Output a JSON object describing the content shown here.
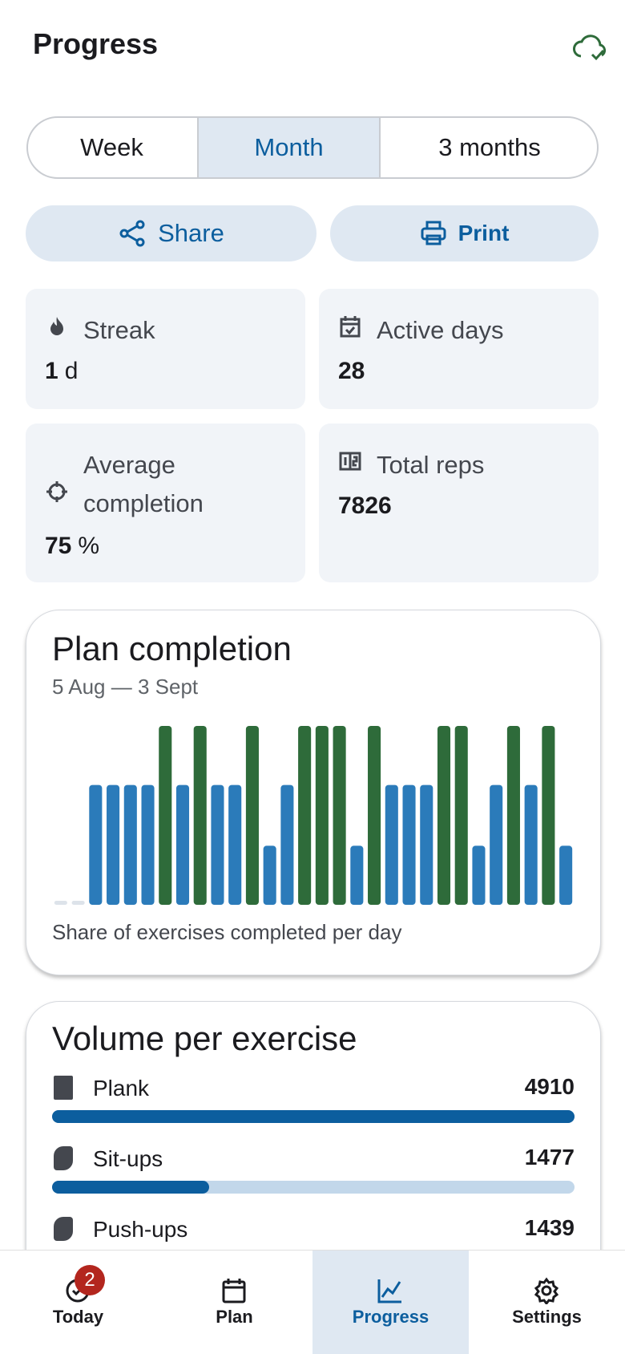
{
  "header": {
    "title": "Progress"
  },
  "tabs": [
    "Week",
    "Month",
    "3 months"
  ],
  "actions": {
    "share": "Share",
    "print": "Print"
  },
  "stats": [
    {
      "label": "Streak",
      "value": 1,
      "unit": "d"
    },
    {
      "label": "Active days",
      "value": 28
    },
    {
      "label": "Average completion",
      "value": 75,
      "unit": "%"
    },
    {
      "label": "Total reps",
      "value": 7826
    }
  ],
  "chart_data": {
    "type": "bar",
    "title": "Plan completion",
    "subtitle": "5 Aug — 3 Sept",
    "caption": "Share of exercises completed per day",
    "values": [
      0,
      0,
      67,
      67,
      67,
      67,
      100,
      67,
      100,
      67,
      67,
      100,
      33,
      67,
      100,
      100,
      100,
      33,
      100,
      67,
      67,
      67,
      100,
      100,
      33,
      67,
      100,
      67,
      100,
      33
    ],
    "ylim": [
      0,
      100
    ],
    "color": "#2b7bba",
    "complete_color": "#2e6b3a",
    "empty_color": "#dde3ea"
  },
  "volume": {
    "title": "Volume per exercise",
    "items": [
      {
        "name": "Plank",
        "value": 4910
      },
      {
        "name": "Sit-ups",
        "value": 1477
      },
      {
        "name": "Push-ups",
        "value": 1439
      }
    ]
  },
  "nav": {
    "items": [
      "Today",
      "Plan",
      "Progress",
      "Settings"
    ],
    "badge": 2
  }
}
